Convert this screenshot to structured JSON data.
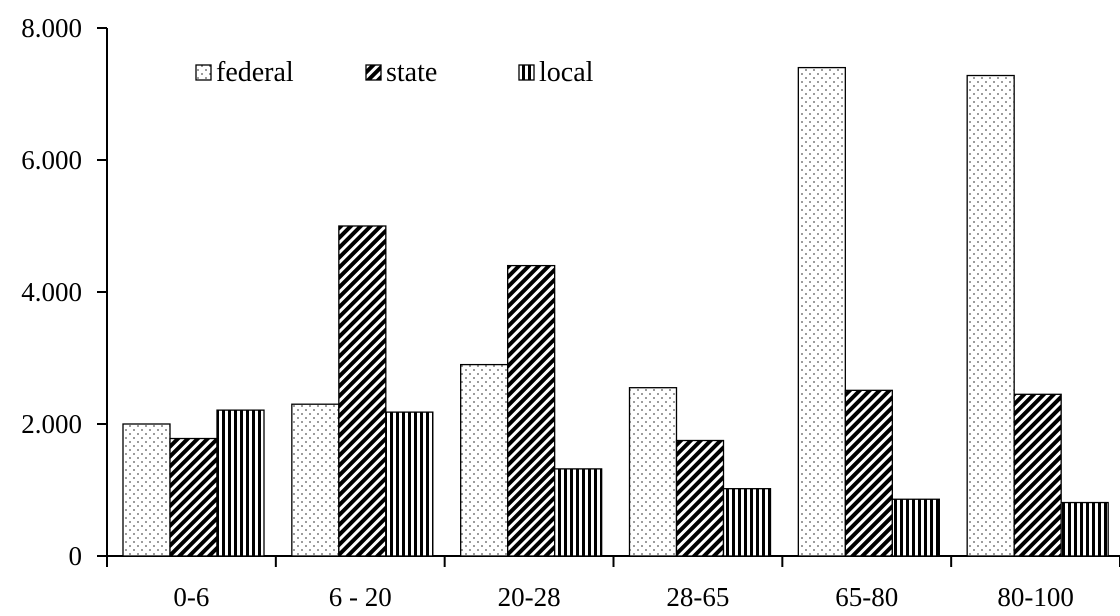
{
  "chart_data": {
    "type": "bar",
    "title": "",
    "xlabel": "",
    "ylabel": "",
    "categories": [
      "0-6",
      "6 - 20",
      "20-28",
      "28-65",
      "65-80",
      "80-100"
    ],
    "series": [
      {
        "name": "federal",
        "pattern": "dots",
        "values": [
          2000,
          2300,
          2900,
          2550,
          7400,
          7280
        ]
      },
      {
        "name": "state",
        "pattern": "diagonal",
        "values": [
          1780,
          5000,
          4400,
          1750,
          2510,
          2450
        ]
      },
      {
        "name": "local",
        "pattern": "vertical",
        "values": [
          2210,
          2180,
          1320,
          1020,
          860,
          810
        ]
      }
    ],
    "ylim": [
      0,
      8000
    ],
    "yticks": [
      0,
      2000,
      4000,
      6000,
      8000
    ],
    "ytick_labels": [
      "0",
      "2.000",
      "4.000",
      "6.000",
      "8.000"
    ],
    "grid": false,
    "legend_position": "top-left"
  }
}
